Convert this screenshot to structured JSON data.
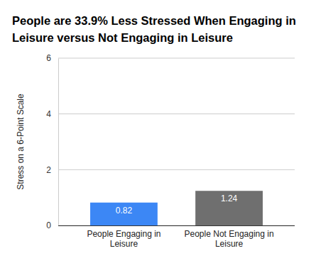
{
  "chart_data": {
    "type": "bar",
    "title": "People are 33.9% Less Stressed When Engaging in Leisure versus Not Engaging in Leisure",
    "y_label": "Stress on a 6-Point Scale",
    "categories": [
      "People Engaging in Leisure",
      "People Not Engaging in Leisure"
    ],
    "values": [
      0.82,
      1.24
    ],
    "colors": [
      "#3c87f5",
      "#6f6f6f"
    ],
    "ylim": [
      0,
      6
    ],
    "yticks": [
      0,
      2,
      4,
      6
    ],
    "grid": true,
    "data_labels": true
  }
}
